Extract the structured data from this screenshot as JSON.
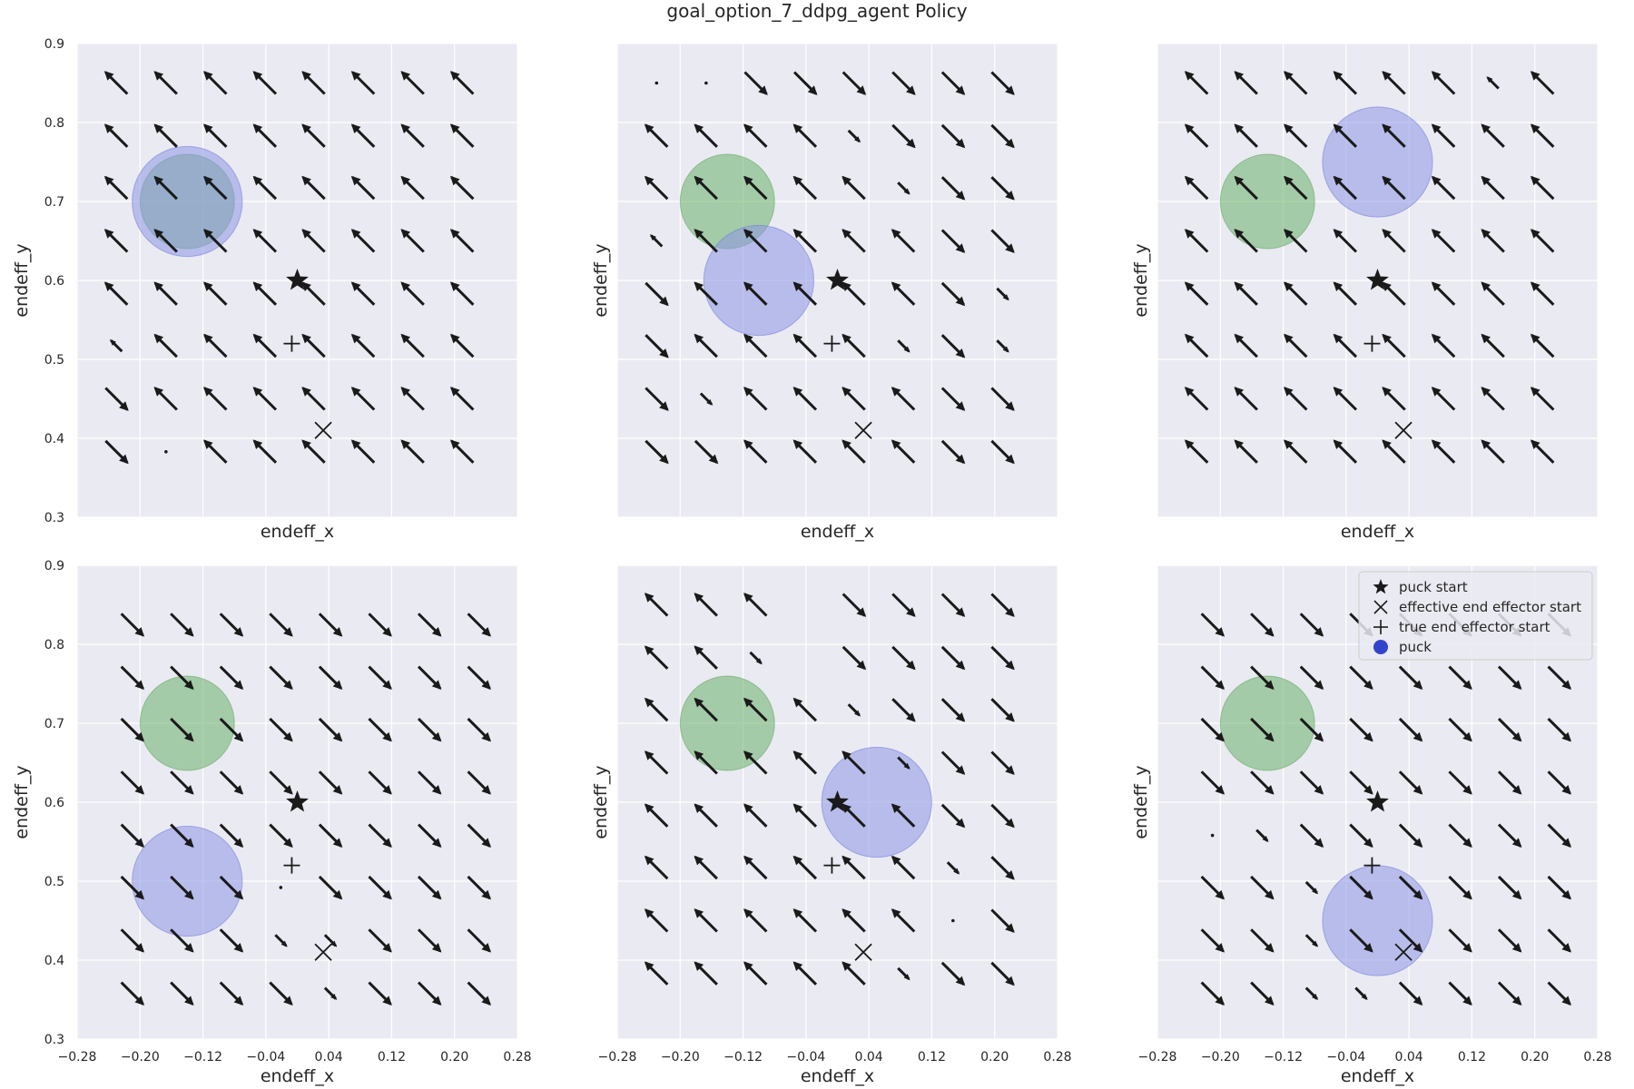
{
  "figure": {
    "title": "goal_option_7_ddpg_agent Policy"
  },
  "colors": {
    "panel_bg": "#eaeaf2",
    "grid": "#ffffff",
    "arrow": "#1a1a1a",
    "goal": "#74b574",
    "puck": "#8c96e6",
    "legend_puck": "#3344cc"
  },
  "legend": {
    "placement": "top-right of bottom-right panel",
    "entries": [
      {
        "marker": "star",
        "label": "puck start"
      },
      {
        "marker": "x",
        "label": "effective end effector start"
      },
      {
        "marker": "plus",
        "label": "true end effector start"
      },
      {
        "marker": "circle",
        "label": "puck"
      }
    ]
  },
  "chart_data": [
    {
      "type": "quiver",
      "panel": "top-left",
      "xlabel": "endeff_x",
      "ylabel": "endeff_y",
      "xlim": [
        -0.28,
        0.28
      ],
      "ylim": [
        0.3,
        0.9
      ],
      "show_xticklabels": false,
      "show_yticklabels": true,
      "xticks": [
        "−0.28",
        "−0.20",
        "−0.12",
        "−0.04",
        "0.04",
        "0.12",
        "0.20",
        "0.28"
      ],
      "yticks": [
        "0.3",
        "0.4",
        "0.5",
        "0.6",
        "0.7",
        "0.8",
        "0.9"
      ],
      "grid": true,
      "arrow_x": [
        -0.23,
        -0.167,
        -0.104,
        -0.041,
        0.021,
        0.084,
        0.147,
        0.21
      ],
      "arrow_y": [
        0.85,
        0.783,
        0.717,
        0.65,
        0.583,
        0.517,
        0.45,
        0.383
      ],
      "arrows": [
        [
          "nw",
          "nw",
          "nw",
          "nw",
          "nw",
          "nw",
          "nw",
          "nw"
        ],
        [
          "nw",
          "nw",
          "nw",
          "nw",
          "nw",
          "nw",
          "nw",
          "nw"
        ],
        [
          "nw",
          "nw",
          "nw",
          "nw",
          "nw",
          "nw",
          "nw",
          "nw"
        ],
        [
          "nw",
          "nw",
          "nw",
          "nw",
          "nw",
          "nw",
          "nw",
          "nw"
        ],
        [
          "nw",
          "nw",
          "nw",
          "nw",
          "nw",
          "nw",
          "nw",
          "nw"
        ],
        [
          "nw-s",
          "nw",
          "nw",
          "nw",
          "nw",
          "nw",
          "nw",
          "nw"
        ],
        [
          "se",
          "nw",
          "nw",
          "nw",
          "nw",
          "nw",
          "nw",
          "nw"
        ],
        [
          "se",
          "dot",
          "nw",
          "nw",
          "nw",
          "nw",
          "nw",
          "nw"
        ]
      ],
      "goal": {
        "x": -0.14,
        "y": 0.7,
        "r": 0.06
      },
      "puck": {
        "x": -0.14,
        "y": 0.7,
        "r": 0.07
      },
      "puck_start": {
        "x": 0.0,
        "y": 0.6
      },
      "effective_ee_start": {
        "x": 0.033,
        "y": 0.41
      },
      "true_ee_start": {
        "x": -0.007,
        "y": 0.52
      }
    },
    {
      "type": "quiver",
      "panel": "top-middle",
      "xlabel": "endeff_x",
      "ylabel": "endeff_y",
      "xlim": [
        -0.28,
        0.28
      ],
      "ylim": [
        0.3,
        0.9
      ],
      "show_xticklabels": false,
      "show_yticklabels": false,
      "xticks": [
        "−0.28",
        "−0.20",
        "−0.12",
        "−0.04",
        "0.04",
        "0.12",
        "0.20",
        "0.28"
      ],
      "yticks": [
        "0.3",
        "0.4",
        "0.5",
        "0.6",
        "0.7",
        "0.8",
        "0.9"
      ],
      "grid": true,
      "arrow_x": [
        -0.23,
        -0.167,
        -0.104,
        -0.041,
        0.021,
        0.084,
        0.147,
        0.21
      ],
      "arrow_y": [
        0.85,
        0.783,
        0.717,
        0.65,
        0.583,
        0.517,
        0.45,
        0.383
      ],
      "arrows": [
        [
          "dot",
          "dot",
          "se",
          "se",
          "se",
          "se",
          "se",
          "se"
        ],
        [
          "nw",
          "nw",
          "nw",
          "nw",
          "se-s",
          "se",
          "se",
          "se"
        ],
        [
          "nw",
          "nw",
          "nw",
          "nw",
          "nw",
          "se-s",
          "se",
          "se"
        ],
        [
          "nw-s",
          "nw",
          "nw",
          "nw",
          "nw",
          "nw",
          "se",
          "se"
        ],
        [
          "se",
          "nw",
          "nw",
          "nw",
          "nw",
          "nw",
          "se",
          "se-s"
        ],
        [
          "se",
          "nw",
          "nw",
          "nw",
          "nw",
          "se-s",
          "se",
          "se-s"
        ],
        [
          "se",
          "se-s",
          "nw",
          "nw",
          "nw",
          "nw",
          "se",
          "se"
        ],
        [
          "se",
          "se",
          "nw",
          "nw",
          "nw",
          "nw",
          "se",
          "se"
        ]
      ],
      "goal": {
        "x": -0.14,
        "y": 0.7,
        "r": 0.06
      },
      "puck": {
        "x": -0.1,
        "y": 0.6,
        "r": 0.07
      },
      "puck_start": {
        "x": 0.0,
        "y": 0.6
      },
      "effective_ee_start": {
        "x": 0.033,
        "y": 0.41
      },
      "true_ee_start": {
        "x": -0.007,
        "y": 0.52
      }
    },
    {
      "type": "quiver",
      "panel": "top-right",
      "xlabel": "endeff_x",
      "ylabel": "endeff_y",
      "xlim": [
        -0.28,
        0.28
      ],
      "ylim": [
        0.3,
        0.9
      ],
      "show_xticklabels": false,
      "show_yticklabels": false,
      "xticks": [
        "−0.28",
        "−0.20",
        "−0.12",
        "−0.04",
        "0.04",
        "0.12",
        "0.20",
        "0.28"
      ],
      "yticks": [
        "0.3",
        "0.4",
        "0.5",
        "0.6",
        "0.7",
        "0.8",
        "0.9"
      ],
      "grid": true,
      "arrow_x": [
        -0.23,
        -0.167,
        -0.104,
        -0.041,
        0.021,
        0.084,
        0.147,
        0.21
      ],
      "arrow_y": [
        0.85,
        0.783,
        0.717,
        0.65,
        0.583,
        0.517,
        0.45,
        0.383
      ],
      "arrows": [
        [
          "nw",
          "nw",
          "nw",
          "nw",
          "nw",
          "nw",
          "nw-s",
          "nw"
        ],
        [
          "nw",
          "nw",
          "nw",
          "nw",
          "nw",
          "nw",
          "nw",
          "nw"
        ],
        [
          "nw",
          "nw",
          "nw",
          "nw",
          "nw",
          "nw",
          "nw",
          "nw"
        ],
        [
          "nw",
          "nw",
          "nw",
          "nw",
          "nw",
          "nw",
          "nw",
          "nw"
        ],
        [
          "nw",
          "nw",
          "nw",
          "nw",
          "nw",
          "nw",
          "nw",
          "nw"
        ],
        [
          "nw",
          "nw",
          "nw",
          "nw",
          "nw",
          "nw",
          "nw",
          "nw"
        ],
        [
          "nw",
          "nw",
          "nw",
          "nw",
          "nw",
          "nw",
          "nw",
          "nw"
        ],
        [
          "nw",
          "nw",
          "nw",
          "nw",
          "nw",
          "nw",
          "nw",
          "nw"
        ]
      ],
      "goal": {
        "x": -0.14,
        "y": 0.7,
        "r": 0.06
      },
      "puck": {
        "x": 0.0,
        "y": 0.75,
        "r": 0.07
      },
      "puck_start": {
        "x": 0.0,
        "y": 0.6
      },
      "effective_ee_start": {
        "x": 0.033,
        "y": 0.41
      },
      "true_ee_start": {
        "x": -0.007,
        "y": 0.52
      }
    },
    {
      "type": "quiver",
      "panel": "bottom-left",
      "xlabel": "endeff_x",
      "ylabel": "endeff_y",
      "xlim": [
        -0.28,
        0.28
      ],
      "ylim": [
        0.3,
        0.9
      ],
      "show_xticklabels": true,
      "show_yticklabels": true,
      "xticks": [
        "−0.28",
        "−0.20",
        "−0.12",
        "−0.04",
        "0.04",
        "0.12",
        "0.20",
        "0.28"
      ],
      "yticks": [
        "0.3",
        "0.4",
        "0.5",
        "0.6",
        "0.7",
        "0.8",
        "0.9"
      ],
      "grid": true,
      "arrow_x": [
        -0.21,
        -0.147,
        -0.084,
        -0.021,
        0.042,
        0.105,
        0.168,
        0.231
      ],
      "arrow_y": [
        0.825,
        0.758,
        0.692,
        0.625,
        0.558,
        0.492,
        0.425,
        0.358
      ],
      "arrows": [
        [
          "se",
          "se",
          "se",
          "se",
          "se",
          "se",
          "se",
          "se"
        ],
        [
          "se",
          "se",
          "se",
          "se",
          "se",
          "se",
          "se",
          "se"
        ],
        [
          "se",
          "se",
          "se",
          "se",
          "se",
          "se",
          "se",
          "se"
        ],
        [
          "se",
          "se",
          "se",
          "se",
          "se",
          "se",
          "se",
          "se"
        ],
        [
          "se",
          "se",
          "se",
          "se",
          "se",
          "se",
          "se",
          "se"
        ],
        [
          "se",
          "se",
          "se",
          "dot",
          "se",
          "se",
          "se",
          "se"
        ],
        [
          "se",
          "se",
          "se",
          "se-s",
          "se-s",
          "se",
          "se",
          "se"
        ],
        [
          "se",
          "se",
          "se",
          "se",
          "se-s",
          "se",
          "se",
          "se"
        ]
      ],
      "goal": {
        "x": -0.14,
        "y": 0.7,
        "r": 0.06
      },
      "puck": {
        "x": -0.14,
        "y": 0.5,
        "r": 0.07
      },
      "puck_start": {
        "x": 0.0,
        "y": 0.6
      },
      "effective_ee_start": {
        "x": 0.033,
        "y": 0.41
      },
      "true_ee_start": {
        "x": -0.007,
        "y": 0.52
      }
    },
    {
      "type": "quiver",
      "panel": "bottom-middle",
      "xlabel": "endeff_x",
      "ylabel": "endeff_y",
      "xlim": [
        -0.28,
        0.28
      ],
      "ylim": [
        0.3,
        0.9
      ],
      "show_xticklabels": true,
      "show_yticklabels": false,
      "xticks": [
        "−0.28",
        "−0.20",
        "−0.12",
        "−0.04",
        "0.04",
        "0.12",
        "0.20",
        "0.28"
      ],
      "yticks": [
        "0.3",
        "0.4",
        "0.5",
        "0.6",
        "0.7",
        "0.8",
        "0.9"
      ],
      "grid": true,
      "arrow_x": [
        -0.23,
        -0.167,
        -0.104,
        -0.041,
        0.021,
        0.084,
        0.147,
        0.21
      ],
      "arrow_y": [
        0.85,
        0.783,
        0.717,
        0.65,
        0.583,
        0.517,
        0.45,
        0.383
      ],
      "arrows": [
        [
          "nw",
          "nw",
          "nw",
          "",
          "se",
          "se",
          "se",
          "se"
        ],
        [
          "nw",
          "nw",
          "se-s",
          "",
          "se",
          "se",
          "se",
          "se"
        ],
        [
          "nw",
          "nw",
          "nw",
          "nw",
          "se-s",
          "se",
          "se",
          "se"
        ],
        [
          "nw",
          "nw",
          "nw",
          "nw",
          "nw",
          "se-s",
          "se",
          "se"
        ],
        [
          "nw",
          "nw",
          "nw",
          "nw",
          "nw",
          "nw",
          "se",
          "se"
        ],
        [
          "nw",
          "nw",
          "nw",
          "nw",
          "nw",
          "nw",
          "se-s",
          "se"
        ],
        [
          "nw",
          "nw",
          "nw",
          "nw",
          "nw",
          "nw",
          "dot",
          "se"
        ],
        [
          "nw",
          "nw",
          "nw",
          "nw",
          "nw",
          "se-s",
          "se",
          "se"
        ]
      ],
      "goal": {
        "x": -0.14,
        "y": 0.7,
        "r": 0.06
      },
      "puck": {
        "x": 0.05,
        "y": 0.6,
        "r": 0.07
      },
      "puck_start": {
        "x": 0.0,
        "y": 0.6
      },
      "effective_ee_start": {
        "x": 0.033,
        "y": 0.41
      },
      "true_ee_start": {
        "x": -0.007,
        "y": 0.52
      }
    },
    {
      "type": "quiver",
      "panel": "bottom-right",
      "xlabel": "endeff_x",
      "ylabel": "endeff_y",
      "xlim": [
        -0.28,
        0.28
      ],
      "ylim": [
        0.3,
        0.9
      ],
      "show_xticklabels": true,
      "show_yticklabels": false,
      "xticks": [
        "−0.28",
        "−0.20",
        "−0.12",
        "−0.04",
        "0.04",
        "0.12",
        "0.20",
        "0.28"
      ],
      "yticks": [
        "0.3",
        "0.4",
        "0.5",
        "0.6",
        "0.7",
        "0.8",
        "0.9"
      ],
      "grid": true,
      "arrow_x": [
        -0.21,
        -0.147,
        -0.084,
        -0.021,
        0.042,
        0.105,
        0.168,
        0.231
      ],
      "arrow_y": [
        0.825,
        0.758,
        0.692,
        0.625,
        0.558,
        0.492,
        0.425,
        0.358
      ],
      "arrows": [
        [
          "se",
          "se",
          "se",
          "se",
          "se",
          "se",
          "se",
          "se"
        ],
        [
          "se",
          "se",
          "se",
          "se",
          "se",
          "se",
          "se",
          "se"
        ],
        [
          "se",
          "se",
          "se",
          "se",
          "se",
          "se",
          "se",
          "se"
        ],
        [
          "se",
          "se",
          "se",
          "se",
          "se",
          "se",
          "se",
          "se"
        ],
        [
          "dot",
          "se-s",
          "se",
          "se",
          "se",
          "se",
          "se",
          "se"
        ],
        [
          "se",
          "se",
          "se-s",
          "se",
          "se",
          "se",
          "se",
          "se"
        ],
        [
          "se",
          "se",
          "se-s",
          "se",
          "se",
          "se",
          "se",
          "se"
        ],
        [
          "se",
          "se",
          "se-s",
          "se-s",
          "se",
          "se",
          "se",
          "se"
        ]
      ],
      "goal": {
        "x": -0.14,
        "y": 0.7,
        "r": 0.06
      },
      "puck": {
        "x": 0.0,
        "y": 0.45,
        "r": 0.07
      },
      "puck_start": {
        "x": 0.0,
        "y": 0.6
      },
      "effective_ee_start": {
        "x": 0.033,
        "y": 0.41
      },
      "true_ee_start": {
        "x": -0.007,
        "y": 0.52
      }
    }
  ]
}
